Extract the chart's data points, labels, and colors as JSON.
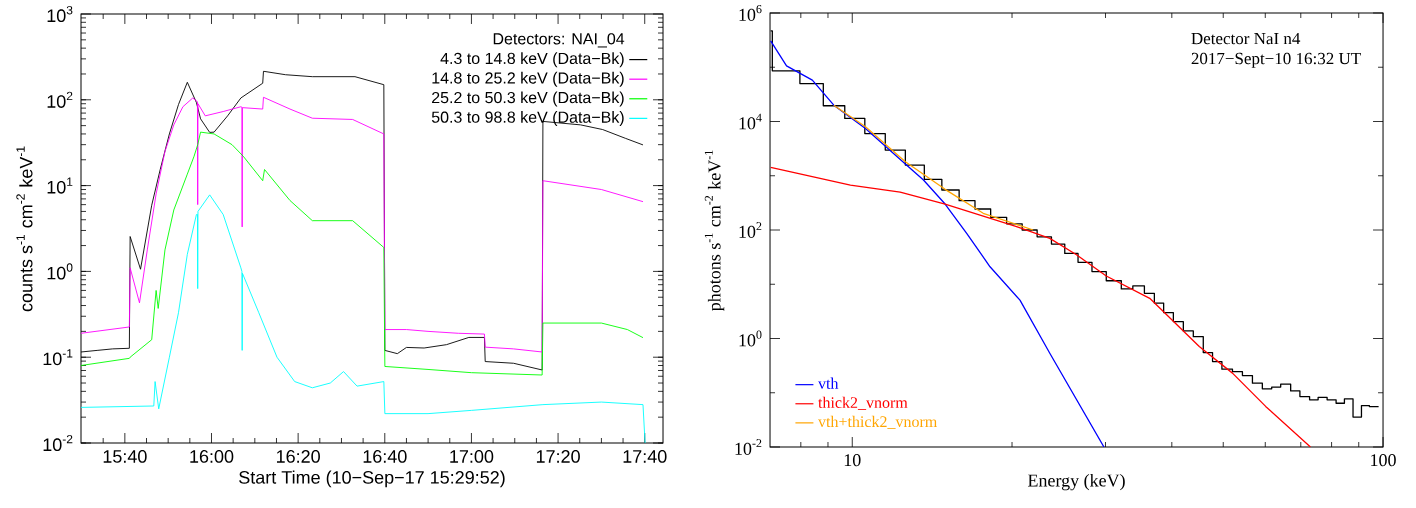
{
  "chart_data": [
    {
      "type": "line",
      "xlabel": "Start Time (10−Sep−17 15:29:52)",
      "ylabel": "counts s$^{-1}$ cm$^{-2}$ keV$^{-1}$",
      "legend_title": "Detectors: NAI_04",
      "legend": "top right",
      "log": "y",
      "xlim": [
        15.498,
        17.737
      ],
      "ylim": [
        0.01,
        1000
      ],
      "xticks": [
        {
          "value": 15.6667,
          "label": "15:40"
        },
        {
          "value": 16.0,
          "label": "16:00"
        },
        {
          "value": 16.3333,
          "label": "16:20"
        },
        {
          "value": 16.6667,
          "label": "16:40"
        },
        {
          "value": 17.0,
          "label": "17:00"
        },
        {
          "value": 17.3333,
          "label": "17:20"
        },
        {
          "value": 17.6667,
          "label": "17:40"
        },
        {
          "value": 15.5833,
          "label": null
        },
        {
          "value": 15.75,
          "label": null
        },
        {
          "value": 15.8333,
          "label": null
        },
        {
          "value": 15.9167,
          "label": null
        },
        {
          "value": 16.0833,
          "label": null
        },
        {
          "value": 16.1667,
          "label": null
        },
        {
          "value": 16.25,
          "label": null
        },
        {
          "value": 16.4167,
          "label": null
        },
        {
          "value": 16.5,
          "label": null
        },
        {
          "value": 16.5833,
          "label": null
        },
        {
          "value": 16.75,
          "label": null
        },
        {
          "value": 16.8333,
          "label": null
        },
        {
          "value": 16.9167,
          "label": null
        },
        {
          "value": 17.0833,
          "label": null
        },
        {
          "value": 17.1667,
          "label": null
        },
        {
          "value": 17.25,
          "label": null
        },
        {
          "value": 17.4167,
          "label": null
        },
        {
          "value": 17.5,
          "label": null
        },
        {
          "value": 17.5833,
          "label": null
        }
      ],
      "yticks": [
        {
          "value": 0.01,
          "label": "10$^{-2}$"
        },
        {
          "value": 0.1,
          "label": "10$^{-1}$"
        },
        {
          "value": 1,
          "label": "10$^{0}$"
        },
        {
          "value": 10,
          "label": "10$^{1}$"
        },
        {
          "value": 100,
          "label": "10$^{2}$"
        },
        {
          "value": 1000,
          "label": "10$^{3}$"
        }
      ],
      "series": [
        {
          "name": "4.3 to 14.8 keV (Data−Bk)",
          "color": "#000000",
          "x": [
            15.498,
            15.56,
            15.62,
            15.684,
            15.687,
            15.727,
            15.77,
            15.803,
            15.838,
            15.873,
            15.907,
            15.942,
            15.958,
            15.993,
            16.01,
            16.062,
            16.113,
            16.197,
            16.2,
            16.285,
            16.388,
            16.552,
            16.663,
            16.667,
            16.715,
            16.75,
            16.818,
            16.904,
            16.99,
            17.05,
            17.053,
            17.162,
            17.272,
            17.275,
            17.42,
            17.505,
            17.592,
            17.66
          ],
          "values": [
            0.115,
            0.12,
            0.125,
            0.127,
            2.55,
            1.06,
            5.9,
            15.5,
            40,
            88,
            160,
            93,
            60,
            41.7,
            42,
            65,
            105,
            156,
            215,
            196,
            186,
            186,
            150,
            0.12,
            0.11,
            0.13,
            0.128,
            0.14,
            0.17,
            0.17,
            0.089,
            0.085,
            0.071,
            56,
            51,
            45,
            35.6,
            29.8
          ]
        },
        {
          "name": "14.8 to 25.2 keV (Data−Bk)",
          "color": "#ff00ff",
          "x": [
            15.498,
            15.684,
            15.687,
            15.723,
            15.753,
            15.787,
            15.821,
            15.855,
            15.89,
            15.928,
            15.946,
            15.947,
            15.948,
            15.976,
            16.045,
            16.113,
            16.117,
            16.118,
            16.119,
            16.197,
            16.2,
            16.302,
            16.388,
            16.543,
            16.663,
            16.667,
            16.75,
            16.833,
            16.95,
            17.05,
            17.053,
            17.162,
            17.272,
            17.275,
            17.5,
            17.66
          ],
          "values": [
            0.19,
            0.225,
            1.1,
            0.43,
            1.78,
            8,
            25,
            51,
            83,
            105,
            95,
            6,
            90,
            65,
            73,
            83,
            82,
            3.3,
            81,
            78,
            107,
            78,
            61,
            59,
            40,
            0.21,
            0.21,
            0.2,
            0.19,
            0.186,
            0.131,
            0.125,
            0.115,
            11.4,
            9,
            6.5
          ]
        },
        {
          "name": "25.2 to 50.3 keV (Data−Bk)",
          "color": "#00ff00",
          "x": [
            15.498,
            15.684,
            15.687,
            15.77,
            15.787,
            15.795,
            15.821,
            15.855,
            15.907,
            15.933,
            15.947,
            15.958,
            16.01,
            16.079,
            16.122,
            16.197,
            16.204,
            16.302,
            16.388,
            16.543,
            16.663,
            16.667,
            16.833,
            17.0,
            17.272,
            17.275,
            17.5,
            17.6,
            17.66
          ],
          "values": [
            0.08,
            0.097,
            0.1,
            0.16,
            0.6,
            0.37,
            1.78,
            5.2,
            13.6,
            22,
            30,
            42,
            40,
            30,
            22,
            11.4,
            15.4,
            6.7,
            3.9,
            3.9,
            1.9,
            0.078,
            0.072,
            0.066,
            0.062,
            0.25,
            0.25,
            0.21,
            0.169
          ]
        },
        {
          "name": "50.3 to 98.8 keV (Data−Bk)",
          "color": "#00ffff",
          "x": [
            15.498,
            15.778,
            15.783,
            15.797,
            15.838,
            15.873,
            15.907,
            15.942,
            15.946,
            15.947,
            15.948,
            15.993,
            16.045,
            16.113,
            16.117,
            16.118,
            16.119,
            16.182,
            16.252,
            16.32,
            16.388,
            16.457,
            16.508,
            16.56,
            16.663,
            16.667,
            16.833,
            17.0,
            17.275,
            17.5,
            17.66,
            17.668
          ],
          "values": [
            0.026,
            0.027,
            0.052,
            0.025,
            0.1,
            0.33,
            1.58,
            4.6,
            4.6,
            0.63,
            5,
            7.8,
            4.6,
            1.1,
            1.0,
            0.12,
            0.95,
            0.33,
            0.1,
            0.052,
            0.044,
            0.05,
            0.068,
            0.046,
            0.052,
            0.022,
            0.022,
            0.024,
            0.028,
            0.03,
            0.028,
            0.01
          ]
        }
      ]
    },
    {
      "type": "line",
      "xlabel": "Energy (keV)",
      "ylabel": "photons s$^{-1}$ cm$^{-2}$ keV$^{-1}$",
      "legend": "bottom left",
      "log": "xy",
      "xlim": [
        7,
        100
      ],
      "ylim": [
        0.01,
        1000000
      ],
      "xticks": [
        10,
        100,
        {
          "value": 8,
          "label": null
        },
        {
          "value": 9,
          "label": null
        },
        {
          "value": 20,
          "label": null
        },
        {
          "value": 30,
          "label": null
        },
        {
          "value": 40,
          "label": null
        },
        {
          "value": 50,
          "label": null
        },
        {
          "value": 60,
          "label": null
        },
        {
          "value": 70,
          "label": null
        },
        {
          "value": 80,
          "label": null
        },
        {
          "value": 90,
          "label": null
        }
      ],
      "yticks": [
        {
          "value": 0.01,
          "label": "10$^{-2}$"
        },
        {
          "value": 1,
          "label": "10$^{0}$"
        },
        {
          "value": 100,
          "label": "10$^{2}$"
        },
        {
          "value": 10000,
          "label": "10$^{4}$"
        },
        {
          "value": 1000000,
          "label": "10$^{6}$"
        },
        {
          "value": 0.1,
          "label": null
        },
        {
          "value": 10,
          "label": null
        },
        {
          "value": 1000,
          "label": null
        },
        {
          "value": 100000,
          "label": null
        }
      ],
      "annotations": [
        "Detector NaI n4",
        "2017−Sept−10 16:32 UT"
      ],
      "series": [
        {
          "type": "step",
          "color": "#000000",
          "x": [
            7.02,
            7.07,
            7.97,
            8.82,
            9.68,
            10.56,
            11.54,
            12.59,
            13.67,
            14.75,
            15.9,
            17.03,
            18.23,
            19.54,
            20.9,
            22.3,
            23.73,
            25.14,
            26.63,
            28.29,
            30.1,
            32.13,
            33.78,
            35.52,
            37.09,
            38.61,
            40.27,
            42.05,
            43.91,
            45.85,
            47.73,
            49.71,
            52.04,
            54.34,
            56.75,
            59.24,
            61.7,
            64.15,
            66.99,
            69.73,
            72.72,
            75.47,
            78.47,
            81.58,
            84.58,
            87.8,
            91.07,
            94.26,
            98.1
          ],
          "values": [
            470000,
            86000,
            50000,
            19500,
            11400,
            6000,
            2970,
            1570,
            860,
            546,
            347,
            244,
            171,
            130,
            100,
            75,
            55,
            37,
            25.4,
            17.1,
            11.6,
            8.2,
            9.3,
            6.8,
            4.5,
            3.0,
            2.05,
            1.38,
            1.08,
            0.55,
            0.376,
            0.272,
            0.245,
            0.207,
            0.15,
            0.118,
            0.127,
            0.144,
            0.108,
            0.085,
            0.074,
            0.082,
            0.074,
            0.064,
            0.077,
            0.0356,
            0.058,
            0.0557,
            0.0557
          ]
        },
        {
          "name": "vth",
          "type": "line",
          "color": "#0000ff",
          "x": [
            7.02,
            7.52,
            8.41,
            9.23,
            10.59,
            12.59,
            13.62,
            14.96,
            16.43,
            18.18,
            20.7,
            23.56,
            29.8
          ],
          "values": [
            306000,
            106000,
            58000,
            20000,
            7460,
            1640,
            834,
            301,
            87,
            21,
            5.1,
            0.536,
            0.01
          ]
        },
        {
          "name": "thick2_vnorm",
          "type": "line",
          "color": "#ff0000",
          "x": [
            7.02,
            9.92,
            12.31,
            14.96,
            20.4,
            23.56,
            26.45,
            30.1,
            36.35,
            45.06,
            52.04,
            60.1,
            73.0
          ],
          "values": [
            1430,
            674,
            500,
            301,
            115,
            70,
            35,
            14.2,
            5.5,
            0.71,
            0.23,
            0.056,
            0.01
          ]
        },
        {
          "name": "vth+thick2_vnorm",
          "type": "line",
          "color": "#ffa500",
          "x": [
            9.23,
            10.59,
            12.59,
            14.96,
            17.65,
            21.92
          ],
          "values": [
            20000,
            8000,
            1810,
            562,
            203,
            100
          ]
        }
      ]
    }
  ]
}
